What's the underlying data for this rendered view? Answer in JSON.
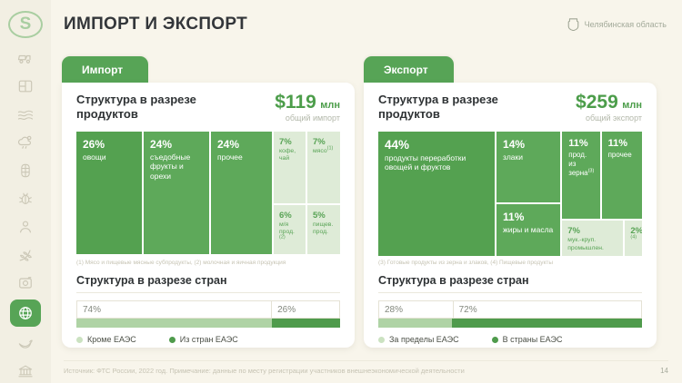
{
  "header": {
    "title": "ИМПОРТ И ЭКСПОРТ",
    "logo_letter": "S",
    "region": "Челябинская область"
  },
  "sidebar": {
    "items": [
      {
        "icon": "machinery-icon",
        "active": false
      },
      {
        "icon": "land-plots-icon",
        "active": false
      },
      {
        "icon": "soil-icon",
        "active": false
      },
      {
        "icon": "weather-icon",
        "active": false
      },
      {
        "icon": "crops-icon",
        "active": false
      },
      {
        "icon": "pests-icon",
        "active": false
      },
      {
        "icon": "personnel-icon",
        "active": false
      },
      {
        "icon": "harvest-icon",
        "active": false
      },
      {
        "icon": "monitoring-icon",
        "active": false
      },
      {
        "icon": "trade-globe-icon",
        "active": true
      },
      {
        "icon": "ecology-icon",
        "active": false
      },
      {
        "icon": "government-icon",
        "active": false
      }
    ]
  },
  "import_card": {
    "tab": "Импорт",
    "section_products": "Структура в разрезе продуктов",
    "total_value": "$119",
    "total_unit": "млн",
    "total_caption": "общий импорт",
    "treemap": {
      "cells": [
        {
          "pct": "26%",
          "label": "овощи"
        },
        {
          "pct": "24%",
          "label": "съедобные фрукты и орехи"
        },
        {
          "pct": "24%",
          "label": "прочее"
        },
        {
          "pct": "7%",
          "label": "кофе, чай"
        },
        {
          "pct": "7%",
          "label": "мясо",
          "sup": "(1)"
        },
        {
          "pct": "6%",
          "label": "м/я прод.",
          "sup": "(2)"
        },
        {
          "pct": "5%",
          "label": "пищев. прод."
        }
      ]
    },
    "footnote": "(1) Мясо и пищевые мясные субпродукты, (2) молочная и яичная продукция",
    "section_countries": "Структура в разрезе стран",
    "bar": {
      "segments": [
        {
          "pct": "74%",
          "value": 74,
          "label": "Кроме ЕАЭС",
          "tone": "light"
        },
        {
          "pct": "26%",
          "value": 26,
          "label": "Из стран ЕАЭС",
          "tone": "dark"
        }
      ]
    }
  },
  "export_card": {
    "tab": "Экспорт",
    "section_products": "Структура в разрезе продуктов",
    "total_value": "$259",
    "total_unit": "млн",
    "total_caption": "общий экспорт",
    "treemap": {
      "cells": [
        {
          "pct": "44%",
          "label": "продукты переработки овощей и фруктов"
        },
        {
          "pct": "14%",
          "label": "злаки"
        },
        {
          "pct": "11%",
          "label": "жиры и масла"
        },
        {
          "pct": "11%",
          "label": "прод. из зерна",
          "sup": "(3)"
        },
        {
          "pct": "11%",
          "label": "прочее"
        },
        {
          "pct": "7%",
          "label": "мук.-круп. промышлен."
        },
        {
          "pct": "2%",
          "label": "",
          "sup": "(4)"
        }
      ]
    },
    "footnote": "(3) Готовые продукты из зерна и злаков, (4) Пищевые продукты",
    "section_countries": "Структура в разрезе стран",
    "bar": {
      "segments": [
        {
          "pct": "28%",
          "value": 28,
          "label": "За пределы ЕАЭС",
          "tone": "light"
        },
        {
          "pct": "72%",
          "value": 72,
          "label": "В страны ЕАЭС",
          "tone": "dark"
        }
      ]
    }
  },
  "footer": {
    "source": "Источник: ФТС России, 2022 год. Примечание: данные по месту регистрации участников внешнеэкономической деятельности",
    "page": "14"
  },
  "colors": {
    "accent": "#57A456",
    "treemap_dark": "#5EA95A",
    "treemap_darker": "#54A150",
    "treemap_light": "#DEEBD7",
    "bar_light": "#AFD3A5",
    "bar_dark": "#4F9B4C",
    "money_green": "#4C9D4A",
    "background": "#F8F5EB",
    "sidebar_background": "#F2EFE3"
  },
  "chart_data": [
    {
      "type": "pie",
      "variant": "treemap",
      "title": "Импорт — структура в разрезе продуктов",
      "total": "$119 млн общий импорт",
      "categories": [
        "овощи",
        "съедобные фрукты и орехи",
        "прочее",
        "кофе, чай",
        "мясо (1)",
        "м/я прод. (2)",
        "пищев. прод."
      ],
      "values": [
        26,
        24,
        24,
        7,
        7,
        6,
        5
      ],
      "unit": "%"
    },
    {
      "type": "bar",
      "variant": "stacked-100",
      "title": "Импорт — структура в разрезе стран",
      "categories": [
        "Кроме ЕАЭС",
        "Из стран ЕАЭС"
      ],
      "values": [
        74,
        26
      ],
      "unit": "%",
      "legend_position": "bottom"
    },
    {
      "type": "pie",
      "variant": "treemap",
      "title": "Экспорт — структура в разрезе продуктов",
      "total": "$259 млн общий экспорт",
      "categories": [
        "продукты переработки овощей и фруктов",
        "злаки",
        "жиры и масла",
        "прод. из зерна (3)",
        "прочее",
        "мук.-круп. промышлен.",
        "пищевые продукты (4)"
      ],
      "values": [
        44,
        14,
        11,
        11,
        11,
        7,
        2
      ],
      "unit": "%"
    },
    {
      "type": "bar",
      "variant": "stacked-100",
      "title": "Экспорт — структура в разрезе стран",
      "categories": [
        "За пределы ЕАЭС",
        "В страны ЕАЭС"
      ],
      "values": [
        28,
        72
      ],
      "unit": "%",
      "legend_position": "bottom"
    }
  ]
}
